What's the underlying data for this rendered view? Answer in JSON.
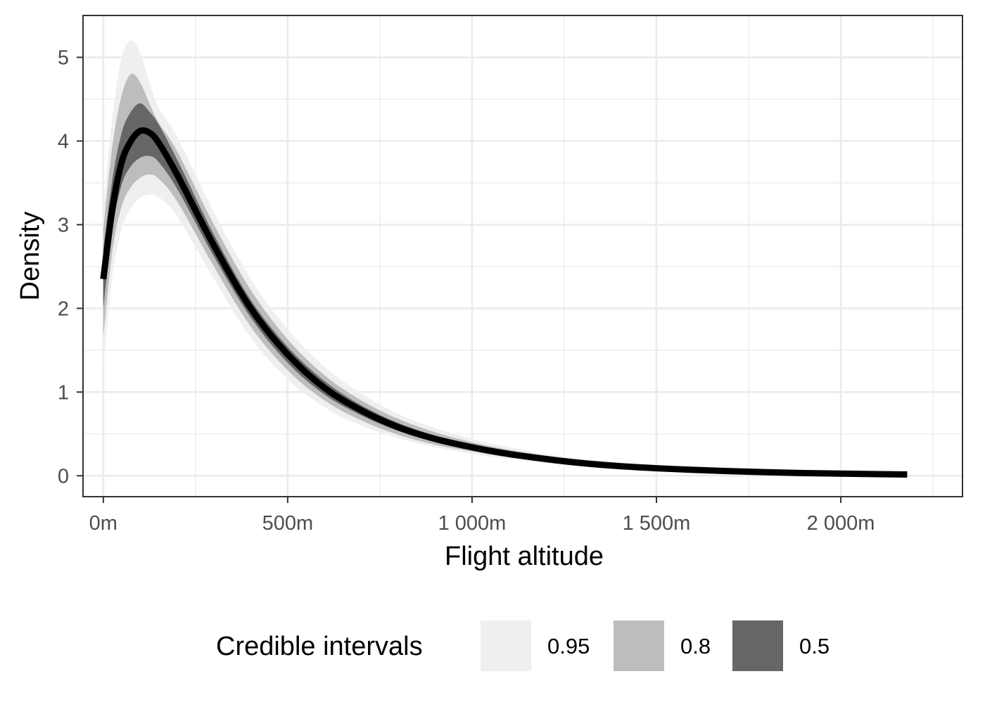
{
  "chart_data": {
    "type": "area",
    "xlabel": "Flight altitude",
    "ylabel": "Density",
    "xlim": [
      -55,
      2330
    ],
    "ylim": [
      -0.25,
      5.5
    ],
    "x_ticks": [
      0,
      500,
      1000,
      1500,
      2000
    ],
    "x_tick_labels": [
      "0m",
      "500m",
      "1 000m",
      "1 500m",
      "2 000m"
    ],
    "y_ticks": [
      0,
      1,
      2,
      3,
      4,
      5
    ],
    "y_tick_labels": [
      "0",
      "1",
      "2",
      "3",
      "4",
      "5"
    ],
    "grid": true,
    "legend": {
      "title": "Credible intervals",
      "position": "bottom",
      "items": [
        {
          "label": "0.95",
          "color": "#efefef"
        },
        {
          "label": "0.8",
          "color": "#bdbdbd"
        },
        {
          "label": "0.5",
          "color": "#666666"
        }
      ]
    },
    "line_color": "#000000",
    "x": [
      0,
      25,
      50,
      75,
      100,
      125,
      150,
      200,
      300,
      400,
      500,
      600,
      700,
      800,
      900,
      1000,
      1100,
      1200,
      1300,
      1400,
      1500,
      1600,
      1700,
      1800,
      1900,
      2000,
      2100,
      2180
    ],
    "median": [
      2.35,
      3.2,
      3.75,
      4.0,
      4.12,
      4.1,
      3.98,
      3.6,
      2.75,
      2.0,
      1.45,
      1.05,
      0.78,
      0.58,
      0.44,
      0.34,
      0.26,
      0.2,
      0.15,
      0.115,
      0.09,
      0.07,
      0.055,
      0.042,
      0.032,
      0.025,
      0.019,
      0.015
    ],
    "bands": [
      {
        "level": "0.95",
        "color": "#efefef",
        "lower": [
          1.3,
          2.4,
          2.95,
          3.2,
          3.32,
          3.36,
          3.33,
          3.1,
          2.35,
          1.65,
          1.15,
          0.82,
          0.6,
          0.45,
          0.34,
          0.26,
          0.2,
          0.15,
          0.11,
          0.085,
          0.065,
          0.05,
          0.038,
          0.029,
          0.022,
          0.017,
          0.013,
          0.01
        ],
        "upper": [
          3.2,
          4.3,
          5.0,
          5.2,
          5.05,
          4.7,
          4.4,
          4.05,
          3.15,
          2.35,
          1.75,
          1.3,
          0.98,
          0.74,
          0.57,
          0.44,
          0.34,
          0.26,
          0.2,
          0.155,
          0.12,
          0.095,
          0.075,
          0.058,
          0.045,
          0.035,
          0.027,
          0.022
        ]
      },
      {
        "level": "0.8",
        "color": "#bdbdbd",
        "lower": [
          1.65,
          2.7,
          3.22,
          3.45,
          3.56,
          3.6,
          3.55,
          3.28,
          2.5,
          1.78,
          1.26,
          0.9,
          0.66,
          0.49,
          0.37,
          0.29,
          0.22,
          0.17,
          0.125,
          0.096,
          0.074,
          0.057,
          0.044,
          0.034,
          0.026,
          0.02,
          0.015,
          0.012
        ],
        "upper": [
          2.95,
          3.95,
          4.55,
          4.8,
          4.7,
          4.45,
          4.22,
          3.88,
          3.0,
          2.22,
          1.63,
          1.2,
          0.9,
          0.68,
          0.52,
          0.4,
          0.31,
          0.24,
          0.18,
          0.14,
          0.107,
          0.084,
          0.066,
          0.051,
          0.04,
          0.031,
          0.024,
          0.019
        ]
      },
      {
        "level": "0.5",
        "color": "#666666",
        "lower": [
          2.0,
          2.95,
          3.48,
          3.7,
          3.8,
          3.82,
          3.75,
          3.43,
          2.62,
          1.89,
          1.35,
          0.97,
          0.72,
          0.535,
          0.405,
          0.315,
          0.24,
          0.185,
          0.138,
          0.105,
          0.082,
          0.063,
          0.049,
          0.037,
          0.028,
          0.022,
          0.017,
          0.013
        ],
        "upper": [
          2.7,
          3.55,
          4.1,
          4.35,
          4.45,
          4.35,
          4.2,
          3.78,
          2.88,
          2.1,
          1.54,
          1.13,
          0.84,
          0.63,
          0.48,
          0.37,
          0.28,
          0.215,
          0.163,
          0.125,
          0.098,
          0.077,
          0.06,
          0.046,
          0.036,
          0.028,
          0.021,
          0.017
        ]
      }
    ]
  }
}
